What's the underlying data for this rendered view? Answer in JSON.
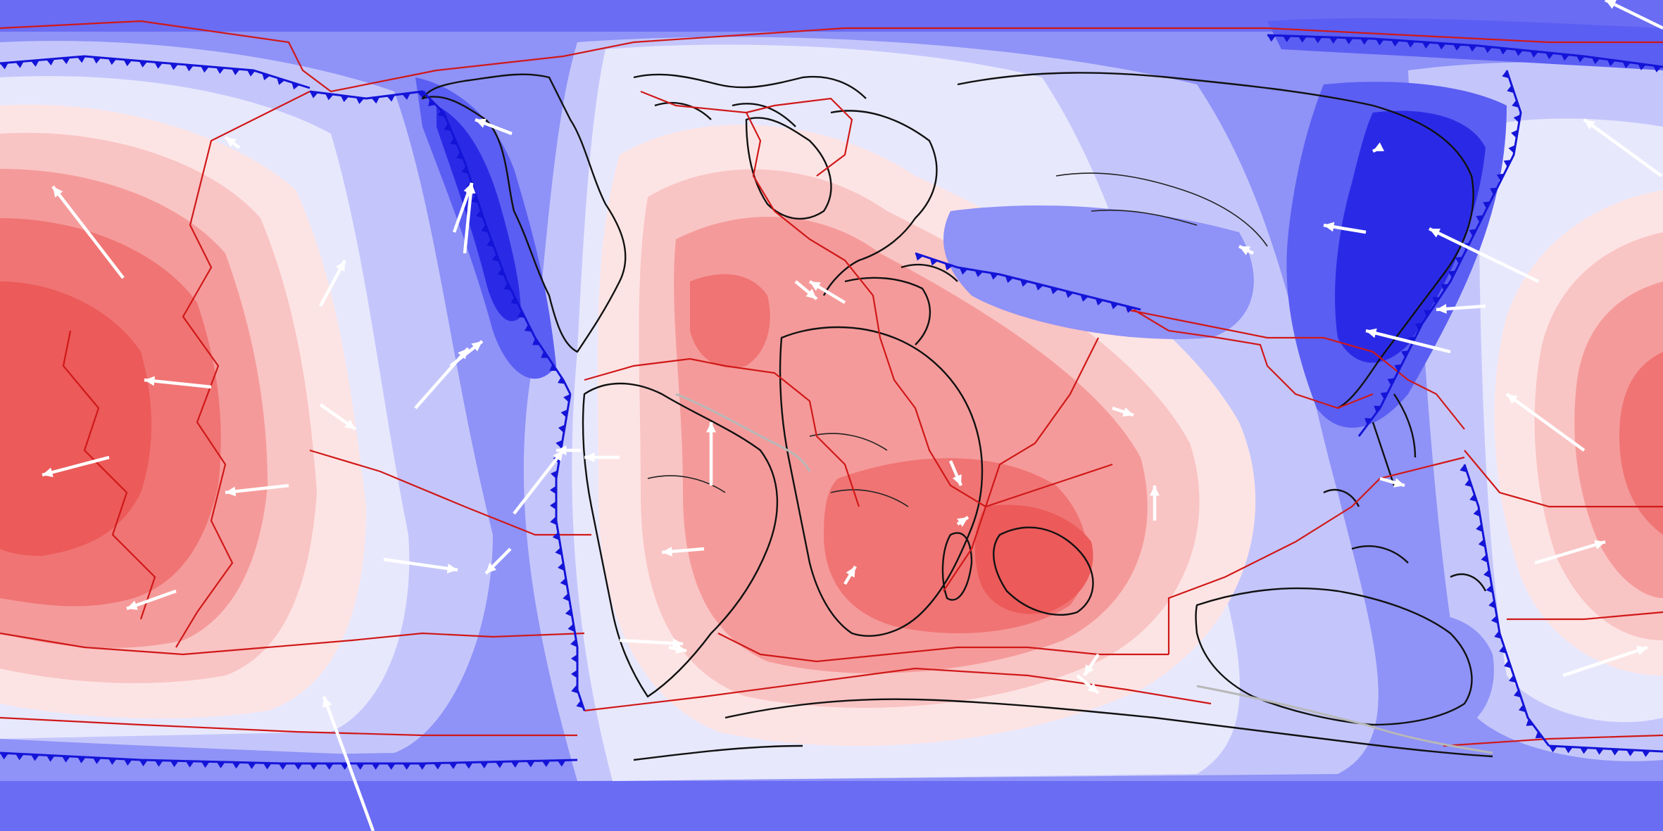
{
  "map": {
    "projection": "equirectangular",
    "layers": [
      "mantle-flow-contours",
      "coastlines",
      "plate-boundaries",
      "subduction-zones",
      "plate-velocity-vectors"
    ],
    "colors": {
      "deep_blue": "#2a2ae6",
      "blue": "#5b5ef2",
      "mid_blue": "#8f92f7",
      "light_blue": "#c4c6fb",
      "pale_blue": "#e8e8fd",
      "pale_red": "#fde4e4",
      "light_red": "#f9c4c4",
      "mid_red": "#f59a9a",
      "red": "#f07474",
      "deep_red": "#ec5a5a",
      "plate_boundary": "#d01818",
      "subduction": "#1414d8",
      "coastline": "#111111",
      "vector": "#ffffff"
    }
  }
}
